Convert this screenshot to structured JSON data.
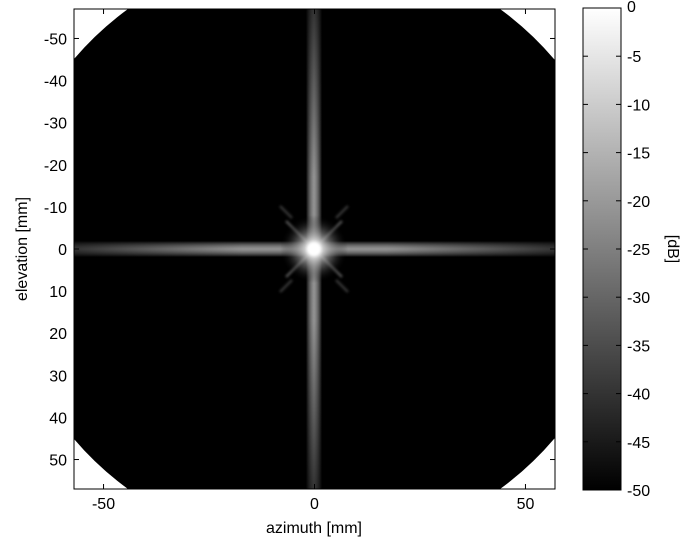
{
  "chart_data": [
    {
      "type": "heatmap",
      "title": "",
      "xlabel": "azimuth [mm]",
      "ylabel": "elevation [mm]",
      "xlim": [
        -57,
        57
      ],
      "ylim": [
        -57,
        57
      ],
      "y_reversed": true,
      "x_ticks": [
        -50,
        0,
        50
      ],
      "y_ticks": [
        -50,
        -40,
        -30,
        -20,
        -10,
        0,
        10,
        20,
        30,
        40,
        50
      ],
      "colormap": "gray",
      "grid": false,
      "description_of_values": {
        "peak_location": [
          0,
          0
        ],
        "peak_value_db": 0,
        "floor_value_db": -50
      }
    },
    {
      "type": "colorbar",
      "label": "[dB]",
      "range": [
        -50,
        0
      ],
      "ticks": [
        0,
        -5,
        -10,
        -15,
        -20,
        -25,
        -30,
        -35,
        -40,
        -45,
        -50
      ]
    }
  ]
}
